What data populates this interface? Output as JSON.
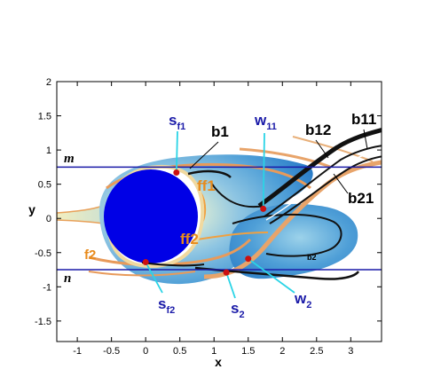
{
  "chart_data": {
    "type": "contour",
    "xlabel": "x",
    "ylabel": "y",
    "xlim": [
      -1.3,
      3.45
    ],
    "ylim": [
      -1.8,
      2.0
    ],
    "xticks": [
      -1,
      -0.5,
      0,
      0.5,
      1,
      1.5,
      2,
      2.5,
      3
    ],
    "yticks": [
      -1.5,
      -1,
      -0.5,
      0,
      0.5,
      1,
      1.5,
      2
    ],
    "xtick_labels": [
      "-1",
      "-0.5",
      "0",
      "0.5",
      "1",
      "1.5",
      "2",
      "2.5",
      "3"
    ],
    "ytick_labels": [
      "-1.5",
      "-1",
      "-0.5",
      "0",
      "0.5",
      "1",
      "1.5",
      "2"
    ],
    "reference_lines": [
      {
        "label": "m",
        "y": 0.75
      },
      {
        "label": "n",
        "y": -0.75
      }
    ],
    "points": [
      {
        "label": "s",
        "sub": "f1",
        "x": 0.45,
        "y": 0.67
      },
      {
        "label": "w",
        "sub": "11",
        "x": 1.72,
        "y": 0.14
      },
      {
        "label": "s",
        "sub": "f2",
        "x": 0.0,
        "y": -0.64
      },
      {
        "label": "s",
        "sub": "2",
        "x": 1.18,
        "y": -0.79
      },
      {
        "label": "w",
        "sub": "2",
        "x": 1.5,
        "y": -0.59
      }
    ],
    "labels": {
      "b1": {
        "text": "b1",
        "x": 1.1,
        "y": 1.3
      },
      "b11": {
        "text": "b11",
        "x": 3.2,
        "y": 1.5
      },
      "b12": {
        "text": "b12",
        "x": 2.5,
        "y": 1.3
      },
      "b21": {
        "text": "b21",
        "x": 3.2,
        "y": 0.25
      },
      "b2": {
        "text": "b2",
        "x": 2.3,
        "y": -0.6
      },
      "ff1": {
        "text": "ff1",
        "x": 0.9,
        "y": 0.45
      },
      "ff2": {
        "text": "ff2",
        "x": 0.6,
        "y": -0.35
      },
      "f2": {
        "text": "f2",
        "x": -0.9,
        "y": -0.6
      },
      "m": {
        "text": "m",
        "x": -1.25,
        "y": 0.87
      },
      "n": {
        "text": "n",
        "x": -1.25,
        "y": -0.93
      }
    },
    "colors": {
      "cylinder": "#0000e6",
      "reference_line": "#1a1aa8",
      "marker": "#cc1010",
      "leader": "#2ad4e6",
      "label_blue": "#1a1aa8",
      "label_orange": "#e88a1a"
    }
  }
}
